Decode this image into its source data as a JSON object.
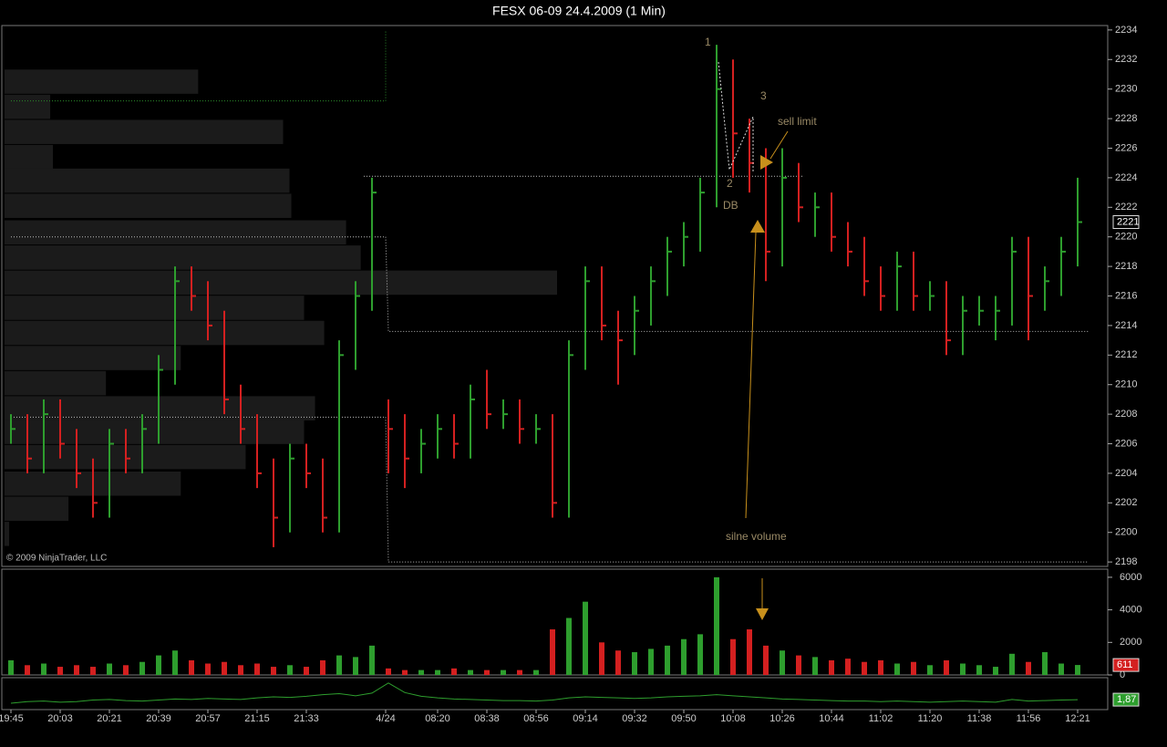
{
  "chart_data": {
    "type": "ohlc",
    "title": "FESX 06-09  24.4.2009 (1 Min)",
    "copyright": "© 2009 NinjaTrader, LLC",
    "up_color": "#2e9e2e",
    "down_color": "#d42020",
    "annotations": [
      "1",
      "2",
      "3",
      "DB",
      "sell limit",
      "silne volume"
    ],
    "xlim": [
      -3,
      401
    ],
    "xticks": [
      {
        "value": 0,
        "label": "19:45"
      },
      {
        "value": 18,
        "label": "20:03"
      },
      {
        "value": 36,
        "label": "20:21"
      },
      {
        "value": 54,
        "label": "20:39"
      },
      {
        "value": 72,
        "label": "20:57"
      },
      {
        "value": 90,
        "label": "21:15"
      },
      {
        "value": 108,
        "label": "21:33"
      },
      {
        "value": 137,
        "label": "4/24"
      },
      {
        "value": 156,
        "label": "08:20"
      },
      {
        "value": 174,
        "label": "08:38"
      },
      {
        "value": 192,
        "label": "08:56"
      },
      {
        "value": 210,
        "label": "09:14"
      },
      {
        "value": 228,
        "label": "09:32"
      },
      {
        "value": 246,
        "label": "09:50"
      },
      {
        "value": 264,
        "label": "10:08"
      },
      {
        "value": 282,
        "label": "10:26"
      },
      {
        "value": 300,
        "label": "10:44"
      },
      {
        "value": 318,
        "label": "11:02"
      },
      {
        "value": 336,
        "label": "11:20"
      },
      {
        "value": 354,
        "label": "11:38"
      },
      {
        "value": 372,
        "label": "11:56"
      },
      {
        "value": 390,
        "label": "12:21"
      }
    ],
    "ylim": [
      2197.7,
      2234.3
    ],
    "yticks": [
      2198,
      2200,
      2202,
      2204,
      2206,
      2208,
      2210,
      2212,
      2214,
      2216,
      2218,
      2220,
      2222,
      2224,
      2226,
      2228,
      2230,
      2232,
      2234
    ],
    "x": [
      0,
      6,
      12,
      18,
      24,
      30,
      36,
      42,
      48,
      54,
      60,
      66,
      72,
      78,
      84,
      90,
      96,
      102,
      108,
      114,
      120,
      126,
      132,
      138,
      144,
      150,
      156,
      162,
      168,
      174,
      180,
      186,
      192,
      198,
      204,
      210,
      216,
      222,
      228,
      234,
      240,
      246,
      252,
      258,
      264,
      270,
      276,
      282,
      288,
      294,
      300,
      306,
      312,
      318,
      324,
      330,
      336,
      342,
      348,
      354,
      360,
      366,
      372,
      378,
      384,
      390
    ],
    "high": [
      2208,
      2208,
      2209,
      2209,
      2207,
      2205,
      2207,
      2207,
      2208,
      2212,
      2218,
      2218,
      2217,
      2215,
      2210,
      2208,
      2205,
      2206,
      2206,
      2205,
      2213,
      2217,
      2224,
      2209,
      2208,
      2207,
      2208,
      2208,
      2210,
      2211,
      2209,
      2209,
      2208,
      2208,
      2213,
      2218,
      2218,
      2215,
      2216,
      2218,
      2220,
      2221,
      2224,
      2233,
      2232,
      2228,
      2226,
      2226,
      2225,
      2223,
      2223,
      2221,
      2220,
      2218,
      2219,
      2219,
      2217,
      2217,
      2216,
      2216,
      2216,
      2220,
      2220,
      2218,
      2220,
      2224
    ],
    "low": [
      2206,
      2204,
      2204,
      2205,
      2203,
      2201,
      2201,
      2204,
      2204,
      2206,
      2210,
      2215,
      2213,
      2208,
      2206,
      2203,
      2199,
      2200,
      2203,
      2200,
      2200,
      2211,
      2215,
      2204,
      2203,
      2204,
      2205,
      2205,
      2205,
      2207,
      2207,
      2206,
      2206,
      2201,
      2201,
      2211,
      2213,
      2210,
      2212,
      2214,
      2216,
      2218,
      2219,
      2222,
      2224,
      2223,
      2217,
      2218,
      2221,
      2220,
      2219,
      2218,
      2216,
      2215,
      2215,
      2215,
      2215,
      2212,
      2212,
      2214,
      2213,
      2214,
      2213,
      2215,
      2216,
      2218
    ],
    "close": [
      2207,
      2205,
      2208,
      2206,
      2204,
      2202,
      2206,
      2205,
      2207,
      2211,
      2217,
      2216,
      2214,
      2209,
      2207,
      2204,
      2201,
      2205,
      2204,
      2201,
      2212,
      2216,
      2223,
      2207,
      2205,
      2206,
      2207,
      2206,
      2209,
      2208,
      2208,
      2207,
      2207,
      2202,
      2212,
      2217,
      2214,
      2213,
      2215,
      2217,
      2219,
      2220,
      2223,
      2230,
      2227,
      2225,
      2219,
      2224,
      2222,
      2222,
      2220,
      2219,
      2217,
      2216,
      2218,
      2216,
      2216,
      2213,
      2215,
      2215,
      2215,
      2219,
      2216,
      2217,
      2219,
      2221
    ],
    "levels": [
      {
        "color": "#2a8a2a",
        "x": [
          0,
          137,
          137
        ],
        "y": [
          2229.2,
          2229.2,
          2234
        ]
      },
      {
        "color": "#bbbbbb",
        "x": [
          0,
          137,
          138,
          394
        ],
        "y": [
          2220,
          2220,
          2213.6,
          2213.6
        ]
      },
      {
        "color": "#bbbbbb",
        "x": [
          0,
          137,
          138,
          394
        ],
        "y": [
          2207.8,
          2207.8,
          2198,
          2198
        ]
      },
      {
        "color": "#bbbbbb",
        "x": [
          129,
          290
        ],
        "y": [
          2224.1,
          2224.1
        ]
      }
    ],
    "volume_profile": {
      "color": "#1b1b1b",
      "xlim": [
        0,
        1210
      ],
      "prices": [
        2230.5,
        2228.8,
        2227.1,
        2225.4,
        2223.8,
        2222.1,
        2220.3,
        2218.6,
        2216.9,
        2215.2,
        2213.5,
        2211.8,
        2210.1,
        2208.4,
        2206.8,
        2205.1,
        2203.3,
        2201.6,
        2199.9
      ],
      "values": [
        212,
        50,
        305,
        53,
        312,
        314,
        374,
        390,
        605,
        328,
        350,
        193,
        111,
        340,
        328,
        264,
        193,
        70,
        5
      ]
    },
    "volume": {
      "ylim": [
        0,
        6500
      ],
      "yticks": [
        0,
        2000,
        4000,
        6000
      ],
      "values": [
        900,
        600,
        700,
        500,
        600,
        500,
        700,
        600,
        800,
        1200,
        1500,
        900,
        700,
        800,
        600,
        700,
        500,
        600,
        500,
        900,
        1200,
        1100,
        1800,
        400,
        300,
        300,
        300,
        400,
        300,
        300,
        300,
        300,
        300,
        2800,
        3500,
        4500,
        2000,
        1500,
        1400,
        1600,
        1800,
        2200,
        2500,
        6000,
        2200,
        2800,
        1800,
        1500,
        1200,
        1100,
        900,
        1000,
        800,
        900,
        700,
        800,
        600,
        900,
        700,
        600,
        500,
        1300,
        800,
        1400,
        700,
        611
      ]
    },
    "indicator": {
      "color": "#2e9e2e",
      "ylim": [
        0,
        6
      ],
      "values": [
        1.2,
        1.5,
        1.6,
        1.4,
        1.5,
        1.8,
        1.9,
        1.7,
        1.6,
        1.8,
        2.0,
        1.9,
        2.1,
        2.0,
        1.9,
        2.2,
        2.4,
        2.3,
        2.5,
        2.8,
        3.0,
        2.6,
        3.1,
        5.0,
        3.2,
        2.5,
        2.2,
        2.0,
        1.9,
        1.8,
        1.7,
        1.7,
        1.6,
        1.8,
        2.2,
        2.4,
        2.3,
        2.2,
        2.1,
        2.2,
        2.4,
        2.5,
        2.6,
        2.8,
        2.6,
        2.4,
        2.2,
        2.0,
        1.9,
        1.8,
        1.7,
        1.6,
        1.6,
        1.5,
        1.6,
        1.5,
        1.4,
        1.5,
        1.6,
        1.5,
        1.4,
        1.9,
        1.6,
        1.7,
        1.8,
        1.87
      ],
      "value_labels": {
        "65": "1,87"
      }
    }
  }
}
